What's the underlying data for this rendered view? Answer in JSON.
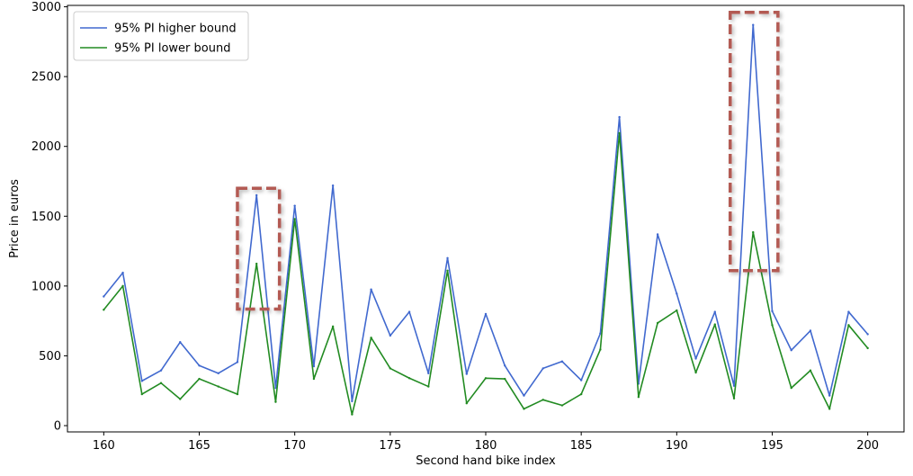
{
  "chart_data": {
    "type": "line",
    "title": "",
    "xlabel": "Second hand bike index",
    "ylabel": "Price in euros",
    "xlim": [
      158.1,
      201.9
    ],
    "ylim": [
      -45,
      3010
    ],
    "xticks": [
      160,
      165,
      170,
      175,
      180,
      185,
      190,
      195,
      200
    ],
    "yticks": [
      0,
      500,
      1000,
      1500,
      2000,
      2500,
      3000
    ],
    "grid": false,
    "legend": "top-left",
    "x": [
      160,
      161,
      162,
      163,
      164,
      165,
      166,
      167,
      168,
      169,
      170,
      171,
      172,
      173,
      174,
      175,
      176,
      177,
      178,
      179,
      180,
      181,
      182,
      183,
      184,
      185,
      186,
      187,
      188,
      189,
      190,
      191,
      192,
      193,
      194,
      195,
      196,
      197,
      198,
      199,
      200
    ],
    "series": [
      {
        "name": "95% PI higher bound",
        "color": "#4169cf",
        "values": [
          925,
          1095,
          320,
          395,
          598,
          430,
          375,
          455,
          1650,
          270,
          1575,
          425,
          1720,
          175,
          975,
          645,
          815,
          375,
          1200,
          370,
          800,
          430,
          215,
          410,
          460,
          325,
          660,
          2210,
          300,
          1370,
          945,
          480,
          815,
          285,
          2870,
          820,
          540,
          680,
          215,
          815,
          655
        ]
      },
      {
        "name": "95% PI lower bound",
        "color": "#228b22",
        "values": [
          830,
          1000,
          225,
          305,
          190,
          335,
          280,
          225,
          1160,
          170,
          1480,
          335,
          710,
          80,
          630,
          410,
          340,
          280,
          1110,
          160,
          340,
          335,
          120,
          185,
          145,
          225,
          545,
          2095,
          205,
          735,
          825,
          380,
          725,
          195,
          1385,
          720,
          270,
          395,
          120,
          720,
          555
        ]
      }
    ],
    "annotations": [
      {
        "type": "dashed-box",
        "color": "#b35a52",
        "x0": 167,
        "x1": 169.2,
        "y0": 835,
        "y1": 1700
      },
      {
        "type": "dashed-box",
        "color": "#b35a52",
        "x0": 192.8,
        "x1": 195.3,
        "y0": 1110,
        "y1": 2960
      }
    ]
  }
}
